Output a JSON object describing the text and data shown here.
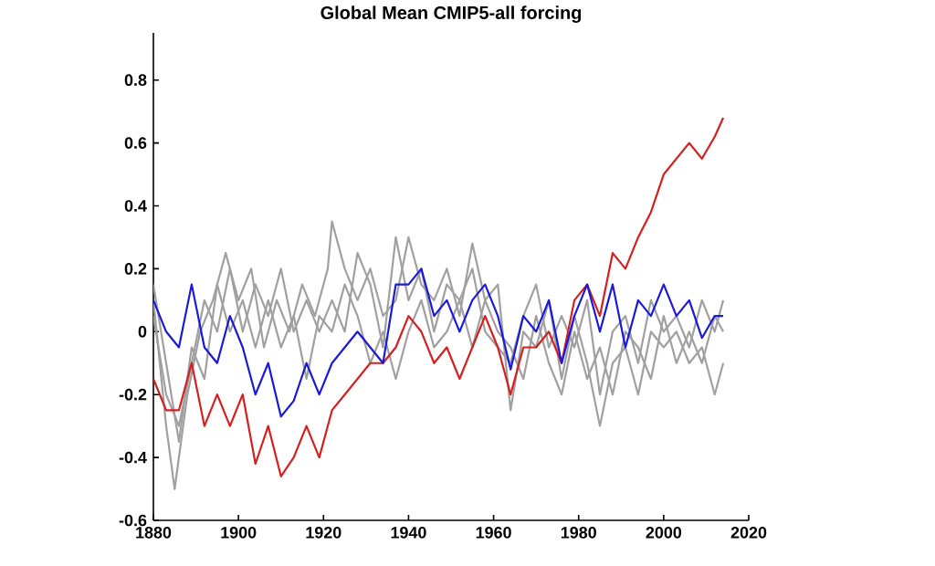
{
  "chart_data": {
    "type": "line",
    "title": "Global Mean CMIP5-all forcing",
    "xlim": [
      1880,
      2020
    ],
    "xticks": [
      1880,
      1900,
      1920,
      1940,
      1960,
      1980,
      2000,
      2020
    ],
    "ylim": [
      -0.6,
      0.95
    ],
    "yticks": [
      -0.6,
      -0.4,
      -0.2,
      0,
      0.2,
      0.4,
      0.6,
      0.8
    ],
    "grid": false,
    "marker": "none",
    "line_style": "solid",
    "series": [
      {
        "color": "#a0a0a0",
        "x": [
          1880,
          1883,
          1885,
          1888,
          1891,
          1894,
          1897,
          1900,
          1903,
          1906,
          1909,
          1912,
          1915,
          1918,
          1921,
          1922,
          1925,
          1928,
          1931,
          1934,
          1937,
          1940,
          1943,
          1946,
          1949,
          1952,
          1955,
          1958,
          1961,
          1964,
          1967,
          1970,
          1973,
          1976,
          1979,
          1982,
          1985,
          1988,
          1991,
          1994,
          1997,
          2000,
          2003,
          2006,
          2009,
          2012,
          2014
        ],
        "values": [
          0.1,
          -0.3,
          -0.5,
          -0.2,
          0.0,
          0.1,
          0.25,
          0.1,
          0.2,
          -0.05,
          0.1,
          0.0,
          0.15,
          0.05,
          0.2,
          0.35,
          0.2,
          0.1,
          0.2,
          0.05,
          0.1,
          0.3,
          0.15,
          0.1,
          0.2,
          0.05,
          0.28,
          0.1,
          0.15,
          -0.25,
          0.0,
          -0.05,
          0.1,
          -0.15,
          0.05,
          -0.1,
          -0.3,
          -0.1,
          -0.05,
          -0.2,
          0.0,
          -0.05,
          0.0,
          -0.1,
          -0.05,
          -0.2,
          -0.1
        ]
      },
      {
        "color": "#a0a0a0",
        "x": [
          1880,
          1883,
          1886,
          1889,
          1892,
          1895,
          1898,
          1901,
          1904,
          1907,
          1910,
          1913,
          1916,
          1919,
          1922,
          1925,
          1928,
          1931,
          1934,
          1937,
          1940,
          1943,
          1946,
          1949,
          1952,
          1955,
          1958,
          1961,
          1964,
          1967,
          1970,
          1973,
          1976,
          1979,
          1982,
          1985,
          1988,
          1991,
          1994,
          1997,
          2000,
          2003,
          2006,
          2009,
          2012,
          2014
        ],
        "values": [
          0.05,
          -0.2,
          -0.3,
          -0.1,
          0.1,
          0.0,
          0.2,
          0.0,
          0.15,
          0.05,
          0.2,
          0.0,
          0.1,
          0.0,
          0.1,
          0.0,
          0.25,
          0.15,
          -0.05,
          0.3,
          0.1,
          0.2,
          0.0,
          0.15,
          0.1,
          0.2,
          0.0,
          -0.05,
          -0.1,
          0.05,
          0.15,
          -0.05,
          0.05,
          -0.05,
          0.1,
          -0.2,
          0.0,
          0.05,
          -0.1,
          0.1,
          0.0,
          0.05,
          -0.05,
          0.1,
          0.0,
          0.1
        ]
      },
      {
        "color": "#a0a0a0",
        "x": [
          1880,
          1883,
          1886,
          1889,
          1892,
          1895,
          1898,
          1901,
          1904,
          1907,
          1910,
          1913,
          1916,
          1919,
          1922,
          1925,
          1928,
          1931,
          1934,
          1937,
          1940,
          1943,
          1946,
          1949,
          1952,
          1955,
          1958,
          1961,
          1964,
          1967,
          1970,
          1973,
          1976,
          1979,
          1982,
          1985,
          1988,
          1991,
          1994,
          1997,
          2000,
          2003,
          2006,
          2009,
          2012,
          2014
        ],
        "values": [
          0.15,
          -0.1,
          -0.35,
          -0.05,
          -0.15,
          0.15,
          0.0,
          0.1,
          -0.05,
          0.1,
          -0.05,
          0.05,
          -0.15,
          0.05,
          0.0,
          0.15,
          0.05,
          -0.1,
          0.0,
          -0.15,
          0.0,
          0.1,
          -0.05,
          0.0,
          0.1,
          -0.05,
          0.1,
          0.0,
          -0.05,
          -0.15,
          0.05,
          -0.1,
          -0.2,
          0.0,
          -0.15,
          -0.05,
          -0.2,
          0.0,
          -0.05,
          -0.15,
          0.05,
          -0.1,
          0.0,
          -0.1,
          0.05,
          0.0
        ]
      },
      {
        "color": "#d42020",
        "x": [
          1880,
          1883,
          1886,
          1889,
          1892,
          1895,
          1898,
          1901,
          1904,
          1907,
          1910,
          1913,
          1916,
          1919,
          1922,
          1925,
          1928,
          1931,
          1934,
          1937,
          1940,
          1943,
          1946,
          1949,
          1952,
          1955,
          1958,
          1961,
          1964,
          1967,
          1970,
          1973,
          1976,
          1979,
          1982,
          1985,
          1988,
          1991,
          1994,
          1997,
          2000,
          2003,
          2006,
          2009,
          2012,
          2014
        ],
        "values": [
          -0.15,
          -0.25,
          -0.25,
          -0.1,
          -0.3,
          -0.2,
          -0.3,
          -0.2,
          -0.42,
          -0.3,
          -0.46,
          -0.4,
          -0.3,
          -0.4,
          -0.25,
          -0.2,
          -0.15,
          -0.1,
          -0.1,
          -0.05,
          0.05,
          0.0,
          -0.1,
          -0.05,
          -0.15,
          -0.05,
          0.05,
          -0.05,
          -0.2,
          -0.05,
          -0.05,
          0.0,
          -0.1,
          0.1,
          0.15,
          0.05,
          0.25,
          0.2,
          0.3,
          0.38,
          0.5,
          0.55,
          0.6,
          0.55,
          0.62,
          0.68
        ]
      },
      {
        "color": "#1a1ad8",
        "x": [
          1880,
          1883,
          1886,
          1889,
          1892,
          1895,
          1898,
          1901,
          1904,
          1907,
          1910,
          1913,
          1916,
          1919,
          1922,
          1925,
          1928,
          1931,
          1934,
          1937,
          1940,
          1943,
          1946,
          1949,
          1952,
          1955,
          1958,
          1961,
          1964,
          1967,
          1970,
          1973,
          1976,
          1979,
          1982,
          1985,
          1988,
          1991,
          1994,
          1997,
          2000,
          2003,
          2006,
          2009,
          2012,
          2014
        ],
        "values": [
          0.1,
          0.0,
          -0.05,
          0.15,
          -0.05,
          -0.1,
          0.05,
          -0.05,
          -0.2,
          -0.1,
          -0.27,
          -0.22,
          -0.1,
          -0.2,
          -0.1,
          -0.05,
          0.0,
          -0.05,
          -0.1,
          0.15,
          0.15,
          0.2,
          0.05,
          0.1,
          0.0,
          0.1,
          0.15,
          0.05,
          -0.12,
          0.05,
          0.0,
          0.1,
          -0.1,
          0.05,
          0.15,
          0.0,
          0.15,
          -0.05,
          0.1,
          0.05,
          0.15,
          0.05,
          0.1,
          -0.02,
          0.05,
          0.05
        ]
      }
    ]
  }
}
